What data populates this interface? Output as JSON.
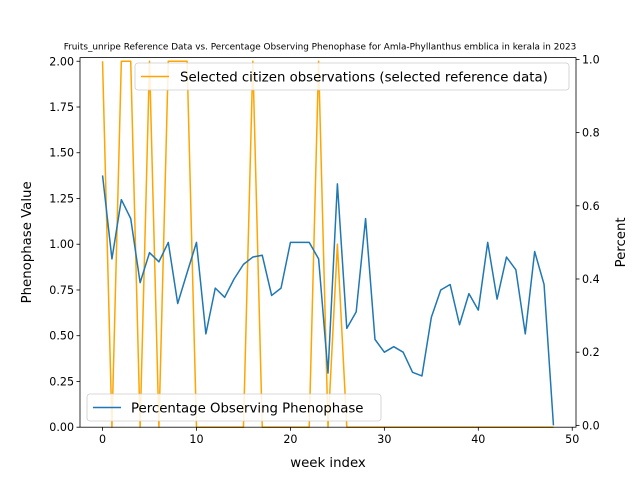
{
  "chart_data": {
    "type": "line",
    "title": "Fruits_unripe Reference Data vs. Percentage Observing Phenophase for Amla-Phyllanthus emblica in kerala in 2023",
    "xlabel": "week index",
    "ylabel_left": "Phenophase Value",
    "ylabel_right": "Percent",
    "xlim": [
      -2.4,
      50.4
    ],
    "ylim_left": [
      0,
      2.02
    ],
    "ylim_right": [
      -0.005,
      1.005
    ],
    "x_ticks": [
      "0",
      "10",
      "20",
      "30",
      "40",
      "50"
    ],
    "y_left_ticks": [
      "0.00",
      "0.25",
      "0.50",
      "0.75",
      "1.00",
      "1.25",
      "1.50",
      "1.75",
      "2.00"
    ],
    "y_right_ticks": [
      "0.0",
      "0.2",
      "0.4",
      "0.6",
      "0.8",
      "1.0"
    ],
    "grid": false,
    "series": [
      {
        "name": "Selected citizen observations (selected reference data)",
        "axis": "left",
        "color": "#ffa500",
        "legend_position": "upper right",
        "x": [
          0,
          1,
          2,
          3,
          4,
          5,
          6,
          7,
          8,
          9,
          10,
          11,
          12,
          13,
          14,
          15,
          16,
          17,
          18,
          19,
          20,
          21,
          22,
          23,
          24,
          25,
          26,
          27,
          28,
          29,
          30,
          31,
          32,
          33,
          34,
          35,
          36,
          37,
          38,
          39,
          40,
          41,
          42,
          43,
          44,
          45,
          46,
          47,
          48
        ],
        "values": [
          2,
          0,
          2,
          2,
          0,
          2,
          0,
          2,
          2,
          2,
          0,
          0,
          0,
          0,
          0,
          0,
          2,
          0,
          0,
          0,
          0,
          0,
          0,
          2,
          0,
          1,
          0,
          0,
          0,
          0,
          0,
          0,
          0,
          0,
          0,
          0,
          0,
          0,
          0,
          0,
          0,
          0,
          0,
          0,
          0,
          0,
          0,
          0,
          0
        ]
      },
      {
        "name": "Percentage Observing Phenophase",
        "axis": "right",
        "color": "#1f77b4",
        "legend_position": "lower left",
        "x": [
          0,
          1,
          2,
          3,
          4,
          5,
          6,
          7,
          8,
          9,
          10,
          11,
          12,
          13,
          14,
          15,
          16,
          17,
          18,
          19,
          20,
          21,
          22,
          23,
          24,
          25,
          26,
          27,
          28,
          29,
          30,
          31,
          32,
          33,
          34,
          35,
          36,
          37,
          38,
          39,
          40,
          41,
          42,
          43,
          44,
          45,
          46,
          47,
          48
        ],
        "values": [
          0.683,
          0.455,
          0.617,
          0.565,
          0.39,
          0.472,
          0.447,
          0.5,
          0.333,
          0.417,
          0.5,
          0.25,
          0.375,
          0.35,
          0.4,
          0.44,
          0.46,
          0.465,
          0.355,
          0.375,
          0.5,
          0.5,
          0.5,
          0.455,
          0.143,
          0.66,
          0.265,
          0.31,
          0.565,
          0.235,
          0.2,
          0.215,
          0.2,
          0.145,
          0.135,
          0.295,
          0.37,
          0.385,
          0.275,
          0.36,
          0.315,
          0.5,
          0.345,
          0.46,
          0.425,
          0.25,
          0.475,
          0.385,
          0.0
        ]
      }
    ]
  }
}
